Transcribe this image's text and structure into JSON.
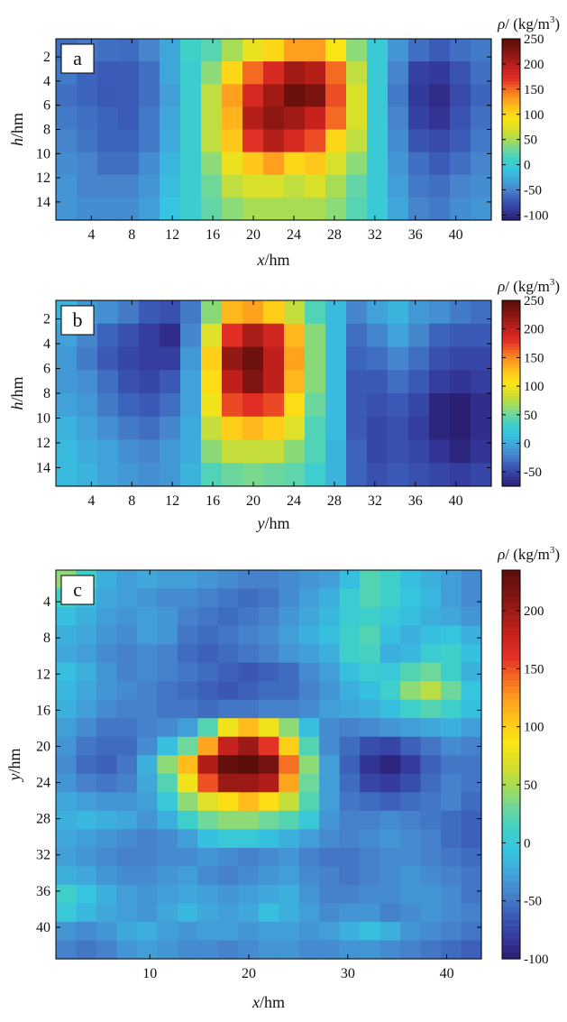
{
  "colormap": [
    "#2b1f73",
    "#343a9c",
    "#3b5bb8",
    "#4684cc",
    "#3fa6da",
    "#35c4e1",
    "#3fd0c8",
    "#6fd79a",
    "#a8dc55",
    "#d9e02a",
    "#fbe414",
    "#ffc81a",
    "#ff9f1f",
    "#f46a22",
    "#e33026",
    "#c8221e",
    "#a01b16",
    "#7a1410",
    "#5a0d0a"
  ],
  "chart_data": [
    {
      "type": "heatmap",
      "id": "a",
      "panel_label": "a",
      "xlabel_var": "x",
      "xlabel_unit": "/hm",
      "ylabel_var": "h",
      "ylabel_unit": "/hm",
      "colorbar_title": {
        "var": "ρ",
        "unit_pre": "/ (kg/m",
        "unit_exp": "3",
        "unit_post": ")"
      },
      "x_ticks": [
        "4",
        "8",
        "12",
        "16",
        "20",
        "24",
        "28",
        "32",
        "36",
        "40"
      ],
      "y_ticks": [
        "2",
        "4",
        "6",
        "8",
        "10",
        "12",
        "14"
      ],
      "colorbar_ticks": [
        "250",
        "200",
        "150",
        "100",
        "50",
        "0",
        "-50",
        "-100"
      ],
      "x_range": [
        1,
        43
      ],
      "y_range": [
        1,
        15
      ],
      "value_range": [
        -110,
        250
      ],
      "grid_cols": 21,
      "grid_rows": 8,
      "values": [
        [
          -60,
          -55,
          -60,
          -62,
          -50,
          -30,
          10,
          20,
          50,
          80,
          100,
          130,
          130,
          90,
          40,
          0,
          -40,
          -60,
          -70,
          -60,
          -55
        ],
        [
          -55,
          -65,
          -70,
          -70,
          -60,
          -30,
          5,
          40,
          100,
          150,
          180,
          210,
          200,
          150,
          60,
          0,
          -50,
          -85,
          -90,
          -75,
          -60
        ],
        [
          -60,
          -65,
          -72,
          -70,
          -60,
          -35,
          5,
          60,
          130,
          180,
          210,
          240,
          230,
          160,
          70,
          0,
          -55,
          -90,
          -100,
          -80,
          -65
        ],
        [
          -55,
          -60,
          -65,
          -70,
          -55,
          -30,
          5,
          60,
          120,
          200,
          220,
          210,
          190,
          150,
          70,
          0,
          -50,
          -85,
          -95,
          -75,
          -60
        ],
        [
          -50,
          -58,
          -65,
          -65,
          -55,
          -28,
          5,
          60,
          110,
          170,
          200,
          180,
          160,
          100,
          60,
          0,
          -45,
          -75,
          -80,
          -70,
          -55
        ],
        [
          -45,
          -50,
          -60,
          -60,
          -45,
          -20,
          5,
          40,
          80,
          110,
          130,
          100,
          110,
          70,
          40,
          0,
          -40,
          -60,
          -70,
          -60,
          -50
        ],
        [
          -40,
          -50,
          -50,
          -50,
          -40,
          -15,
          5,
          30,
          60,
          70,
          70,
          60,
          70,
          50,
          25,
          0,
          -35,
          -55,
          -60,
          -50,
          -45
        ],
        [
          -40,
          -45,
          -45,
          -45,
          -35,
          -10,
          5,
          25,
          40,
          50,
          50,
          50,
          50,
          40,
          20,
          0,
          -30,
          -50,
          -55,
          -45,
          -40
        ]
      ]
    },
    {
      "type": "heatmap",
      "id": "b",
      "panel_label": "b",
      "xlabel_var": "y",
      "xlabel_unit": "/hm",
      "ylabel_var": "h",
      "ylabel_unit": "/hm",
      "colorbar_title": {
        "var": "ρ",
        "unit_pre": "/ (kg/m",
        "unit_exp": "3",
        "unit_post": ")"
      },
      "x_ticks": [
        "4",
        "8",
        "12",
        "16",
        "20",
        "24",
        "28",
        "32",
        "36",
        "40"
      ],
      "y_ticks": [
        "2",
        "4",
        "6",
        "8",
        "10",
        "12",
        "14"
      ],
      "colorbar_ticks": [
        "250",
        "200",
        "150",
        "100",
        "50",
        "0",
        "-50"
      ],
      "x_range": [
        1,
        43
      ],
      "y_range": [
        1,
        15
      ],
      "value_range": [
        -75,
        250
      ],
      "grid_cols": 21,
      "grid_rows": 8,
      "values": [
        [
          5,
          -10,
          -15,
          -25,
          -40,
          -45,
          -25,
          60,
          130,
          140,
          120,
          80,
          40,
          10,
          -20,
          -5,
          5,
          -10,
          -15,
          -25,
          -30
        ],
        [
          -5,
          -20,
          -35,
          -45,
          -55,
          -65,
          -20,
          90,
          180,
          210,
          190,
          130,
          60,
          10,
          -30,
          -20,
          -5,
          -20,
          -35,
          -40,
          -40
        ],
        [
          -10,
          -25,
          -40,
          -50,
          -55,
          -55,
          -10,
          120,
          220,
          240,
          200,
          140,
          60,
          10,
          -35,
          -30,
          -20,
          -30,
          -45,
          -50,
          -50
        ],
        [
          -10,
          -15,
          -30,
          -45,
          -50,
          -40,
          -5,
          110,
          200,
          230,
          200,
          130,
          60,
          10,
          -40,
          -40,
          -30,
          -40,
          -55,
          -60,
          -55
        ],
        [
          -5,
          -10,
          -25,
          -35,
          -40,
          -30,
          -5,
          100,
          170,
          180,
          170,
          110,
          50,
          10,
          -40,
          -45,
          -40,
          -50,
          -70,
          -75,
          -65
        ],
        [
          5,
          -5,
          -15,
          -25,
          -30,
          -20,
          0,
          80,
          120,
          130,
          120,
          90,
          40,
          10,
          -40,
          -50,
          -45,
          -55,
          -70,
          -80,
          -65
        ],
        [
          10,
          0,
          -5,
          -15,
          -20,
          -10,
          0,
          60,
          80,
          80,
          80,
          60,
          40,
          5,
          -35,
          -50,
          -45,
          -50,
          -60,
          -70,
          -60
        ],
        [
          10,
          5,
          -5,
          -10,
          -15,
          -10,
          5,
          40,
          50,
          55,
          50,
          45,
          30,
          5,
          -35,
          -45,
          -40,
          -45,
          -50,
          -55,
          -50
        ]
      ]
    },
    {
      "type": "heatmap",
      "id": "c",
      "panel_label": "c",
      "xlabel_var": "x",
      "xlabel_unit": "/hm",
      "ylabel_var": "y",
      "ylabel_unit": "/hm",
      "colorbar_title": {
        "var": "ρ",
        "unit_pre": "/ (kg/m",
        "unit_exp": "3",
        "unit_post": ")"
      },
      "x_ticks": [
        "10",
        "20",
        "30",
        "40"
      ],
      "y_ticks": [
        "4",
        "8",
        "12",
        "16",
        "20",
        "24",
        "28",
        "32",
        "36",
        "40"
      ],
      "colorbar_ticks": [
        "200",
        "150",
        "100",
        "50",
        "0",
        "-50",
        "-100"
      ],
      "x_range": [
        1,
        43
      ],
      "y_range": [
        1,
        43
      ],
      "value_range": [
        -100,
        235
      ],
      "grid_cols": 21,
      "grid_rows": 21,
      "values": [
        [
          40,
          10,
          -20,
          -30,
          -25,
          -30,
          -30,
          -35,
          -40,
          -45,
          -45,
          -40,
          -35,
          -30,
          -10,
          20,
          10,
          -10,
          -20,
          -30,
          -40
        ],
        [
          10,
          -10,
          -25,
          -30,
          -35,
          -40,
          -40,
          -45,
          -50,
          -55,
          -50,
          -40,
          -30,
          -20,
          5,
          20,
          10,
          -5,
          -15,
          -30,
          -40
        ],
        [
          -10,
          -20,
          -30,
          -35,
          -30,
          -35,
          -45,
          -50,
          -55,
          -50,
          -45,
          -35,
          -25,
          -15,
          5,
          10,
          0,
          -10,
          -20,
          -25,
          -35
        ],
        [
          -20,
          -25,
          -35,
          -40,
          -30,
          -35,
          -50,
          -55,
          -50,
          -45,
          -40,
          -30,
          -20,
          -10,
          10,
          20,
          -10,
          -20,
          -10,
          -5,
          -20
        ],
        [
          -25,
          -30,
          -40,
          -45,
          -40,
          -45,
          -55,
          -60,
          -55,
          -50,
          -45,
          -35,
          -30,
          -20,
          10,
          15,
          -20,
          -15,
          5,
          10,
          -10
        ],
        [
          -10,
          -20,
          -35,
          -45,
          -40,
          -45,
          -50,
          -55,
          -60,
          -65,
          -60,
          -55,
          -40,
          -30,
          -10,
          5,
          0,
          20,
          30,
          10,
          -20
        ],
        [
          -15,
          -25,
          -35,
          -40,
          -45,
          -50,
          -55,
          -60,
          -65,
          -60,
          -55,
          -55,
          -45,
          -35,
          -20,
          -10,
          10,
          40,
          55,
          30,
          -5
        ],
        [
          -20,
          -30,
          -40,
          -45,
          -45,
          -50,
          -50,
          -55,
          -50,
          -50,
          -45,
          -45,
          -40,
          -30,
          -25,
          -20,
          -10,
          10,
          20,
          10,
          -10
        ],
        [
          -30,
          -40,
          -50,
          -50,
          -45,
          -40,
          -30,
          20,
          80,
          110,
          80,
          40,
          -10,
          -40,
          -45,
          -40,
          -35,
          -30,
          -25,
          -20,
          -30
        ],
        [
          -35,
          -50,
          -55,
          -55,
          -40,
          -10,
          30,
          120,
          180,
          200,
          160,
          100,
          20,
          -40,
          -55,
          -70,
          -75,
          -60,
          -50,
          -40,
          -45
        ],
        [
          -40,
          -55,
          -60,
          -50,
          -20,
          40,
          110,
          190,
          230,
          235,
          220,
          140,
          40,
          -30,
          -60,
          -85,
          -95,
          -80,
          -60,
          -50,
          -50
        ],
        [
          -35,
          -45,
          -50,
          -45,
          -25,
          20,
          80,
          150,
          200,
          200,
          190,
          120,
          30,
          -30,
          -55,
          -75,
          -80,
          -70,
          -55,
          -45,
          -50
        ],
        [
          -25,
          -30,
          -35,
          -35,
          -30,
          0,
          40,
          70,
          90,
          110,
          90,
          60,
          20,
          -30,
          -50,
          -55,
          -60,
          -55,
          -50,
          -45,
          -55
        ],
        [
          -20,
          -15,
          -20,
          -25,
          -35,
          -20,
          10,
          30,
          40,
          40,
          30,
          20,
          0,
          -35,
          -45,
          -45,
          -40,
          -45,
          -50,
          -55,
          -60
        ],
        [
          -25,
          -30,
          -35,
          -40,
          -45,
          -40,
          -30,
          -10,
          0,
          0,
          -10,
          -20,
          -30,
          -40,
          -45,
          -40,
          -35,
          -40,
          -45,
          -55,
          -60
        ],
        [
          -30,
          -35,
          -40,
          -45,
          -45,
          -40,
          -40,
          -35,
          -40,
          -45,
          -40,
          -35,
          -45,
          -50,
          -50,
          -45,
          -40,
          -40,
          -45,
          -50,
          -55
        ],
        [
          -20,
          -25,
          -35,
          -40,
          -40,
          -35,
          -30,
          -40,
          -45,
          -40,
          -35,
          -30,
          -40,
          -45,
          -50,
          -45,
          -40,
          -35,
          -40,
          -45,
          -50
        ],
        [
          10,
          -5,
          -20,
          -30,
          -35,
          -30,
          -25,
          -30,
          -35,
          -30,
          -25,
          -20,
          -35,
          -45,
          -45,
          -40,
          -40,
          -35,
          -35,
          -40,
          -50
        ],
        [
          0,
          -15,
          -25,
          -30,
          -35,
          -25,
          -15,
          -25,
          -30,
          -25,
          -10,
          -20,
          -30,
          -40,
          -35,
          -35,
          -45,
          -40,
          -35,
          -40,
          -45
        ],
        [
          -35,
          -40,
          -35,
          -25,
          -20,
          -30,
          -35,
          -30,
          -30,
          -35,
          -30,
          -30,
          -35,
          -30,
          -20,
          -10,
          -20,
          -35,
          -40,
          -45,
          -50
        ],
        [
          -45,
          -50,
          -45,
          -35,
          -30,
          -35,
          -40,
          -40,
          -45,
          -40,
          -35,
          -35,
          -40,
          -40,
          -35,
          -35,
          -40,
          -45,
          -50,
          -55,
          -60
        ]
      ]
    }
  ]
}
